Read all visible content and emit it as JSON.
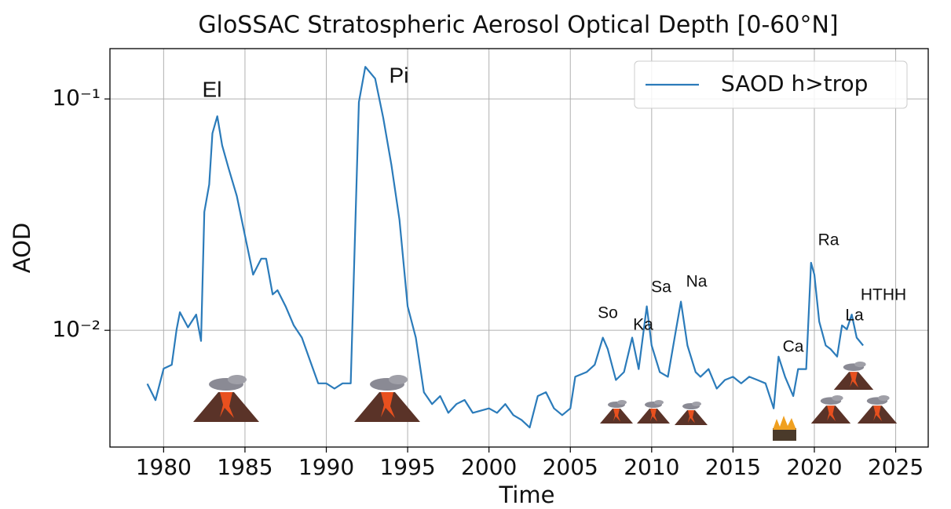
{
  "chart_data": {
    "type": "line",
    "title": "GloSSAC Stratospheric Aerosol Optical Depth [0-60°N]",
    "x_label": "Time",
    "y_label": "AOD",
    "y_scale": "log",
    "grid": true,
    "legend": "upper right",
    "xlim": [
      1976.7,
      2027.0
    ],
    "ylim": [
      0.00313,
      0.165
    ],
    "xticks": [
      1980,
      1985,
      1990,
      1995,
      2000,
      2005,
      2010,
      2015,
      2020,
      2025
    ],
    "yticks": [
      {
        "value": 0.1,
        "label": "10⁻¹"
      },
      {
        "value": 0.01,
        "label": "10⁻²"
      }
    ],
    "x": [
      1979.0,
      1979.5,
      1980.0,
      1980.5,
      1980.8,
      1981.0,
      1981.5,
      1982.0,
      1982.3,
      1982.5,
      1982.8,
      1983.0,
      1983.3,
      1983.6,
      1984.0,
      1984.5,
      1985.0,
      1985.5,
      1986.0,
      1986.3,
      1986.7,
      1987.0,
      1987.5,
      1988.0,
      1988.5,
      1989.0,
      1989.5,
      1990.0,
      1990.5,
      1991.0,
      1991.5,
      1992.0,
      1992.4,
      1993.0,
      1993.5,
      1994.0,
      1994.5,
      1995.0,
      1995.5,
      1996.0,
      1996.5,
      1997.0,
      1997.5,
      1998.0,
      1998.5,
      1999.0,
      2000.0,
      2000.5,
      2001.0,
      2001.5,
      2002.0,
      2002.5,
      2003.0,
      2003.5,
      2004.0,
      2004.5,
      2005.0,
      2005.3,
      2006.0,
      2006.5,
      2007.0,
      2007.3,
      2007.8,
      2008.3,
      2008.8,
      2009.2,
      2009.7,
      2010.0,
      2010.5,
      2011.0,
      2011.5,
      2011.8,
      2012.2,
      2012.7,
      2013.0,
      2013.5,
      2014.0,
      2014.5,
      2015.0,
      2015.5,
      2016.0,
      2016.5,
      2017.0,
      2017.5,
      2017.8,
      2018.2,
      2018.7,
      2019.0,
      2019.5,
      2019.8,
      2020.0,
      2020.3,
      2020.7,
      2021.0,
      2021.4,
      2021.7,
      2022.0,
      2022.3,
      2022.6,
      2023.0
    ],
    "series": [
      {
        "name": "SAOD h>trop",
        "color": "#2b7bba",
        "values": [
          0.00587,
          0.00499,
          0.00683,
          0.0071,
          0.0101,
          0.01197,
          0.0103,
          0.0117,
          0.009,
          0.0325,
          0.0427,
          0.071,
          0.0842,
          0.063,
          0.05,
          0.038,
          0.0257,
          0.0174,
          0.0204,
          0.0204,
          0.0143,
          0.0149,
          0.0127,
          0.0105,
          0.0093,
          0.0074,
          0.0059,
          0.0059,
          0.0056,
          0.0059,
          0.0059,
          0.0969,
          0.1377,
          0.1225,
          0.0829,
          0.0519,
          0.03,
          0.0127,
          0.0093,
          0.0054,
          0.0048,
          0.0052,
          0.0044,
          0.0048,
          0.005,
          0.0044,
          0.0046,
          0.0044,
          0.0048,
          0.0043,
          0.0041,
          0.0038,
          0.0052,
          0.0054,
          0.0046,
          0.0043,
          0.0046,
          0.0063,
          0.0066,
          0.0071,
          0.0093,
          0.0083,
          0.0061,
          0.0066,
          0.0093,
          0.0068,
          0.0127,
          0.0086,
          0.0066,
          0.0063,
          0.0101,
          0.0133,
          0.0086,
          0.0066,
          0.0063,
          0.0068,
          0.0056,
          0.0061,
          0.0063,
          0.0059,
          0.0063,
          0.0061,
          0.0059,
          0.0046,
          0.0077,
          0.0063,
          0.0052,
          0.0068,
          0.0068,
          0.0196,
          0.0174,
          0.0109,
          0.0086,
          0.0083,
          0.0077,
          0.0105,
          0.0101,
          0.0117,
          0.0093,
          0.0086
        ]
      }
    ],
    "annotations": [
      "El",
      "Pi",
      "So",
      "Ka",
      "Sa",
      "Na",
      "Ca",
      "Ra",
      "La",
      "HTHH"
    ]
  }
}
